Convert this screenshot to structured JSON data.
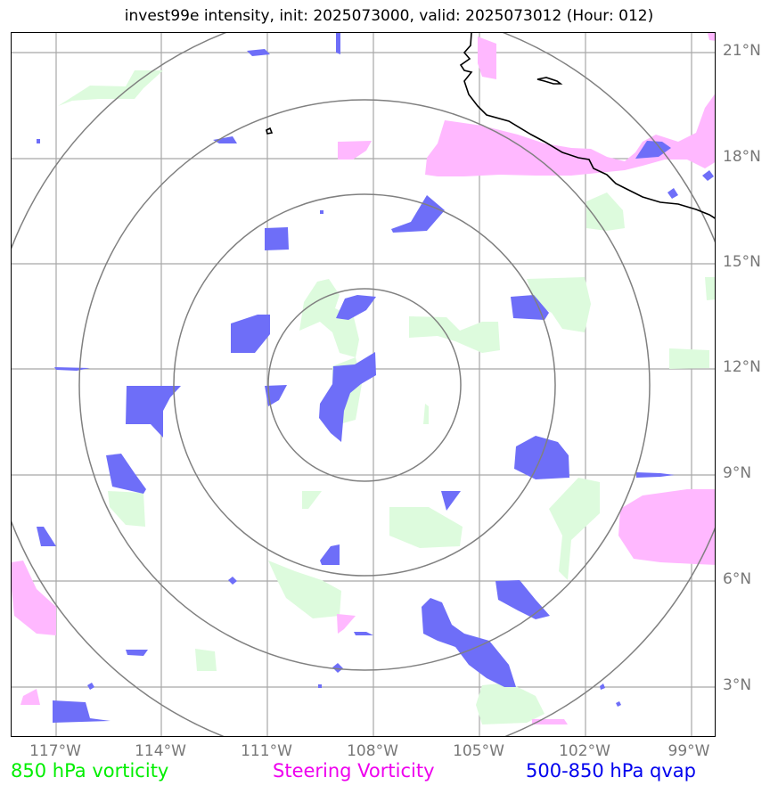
{
  "title": "invest99e intensity, init: 2025073000, valid: 2025073012 (Hour: 012)",
  "lat_labels": [
    "21°N",
    "18°N",
    "15°N",
    "12°N",
    "9°N",
    "6°N",
    "3°N"
  ],
  "lon_labels": [
    "117°W",
    "114°W",
    "111°W",
    "108°W",
    "105°W",
    "102°W",
    "99°W"
  ],
  "legend": {
    "vorticity": "850 hPa vorticity",
    "steering": "Steering Vorticity",
    "qvap": "500-850 hPa qvap"
  },
  "colors": {
    "vorticity_fill": "#ddfbdd",
    "steering_fill": "#ffb8ff",
    "qvap_fill": "#6e6ef8",
    "vorticity_text": "#00ee00",
    "steering_text": "#ee00ee",
    "qvap_text": "#0000ee",
    "grid": "#999999",
    "range_rings": "#808080",
    "coastline": "#000000"
  }
}
